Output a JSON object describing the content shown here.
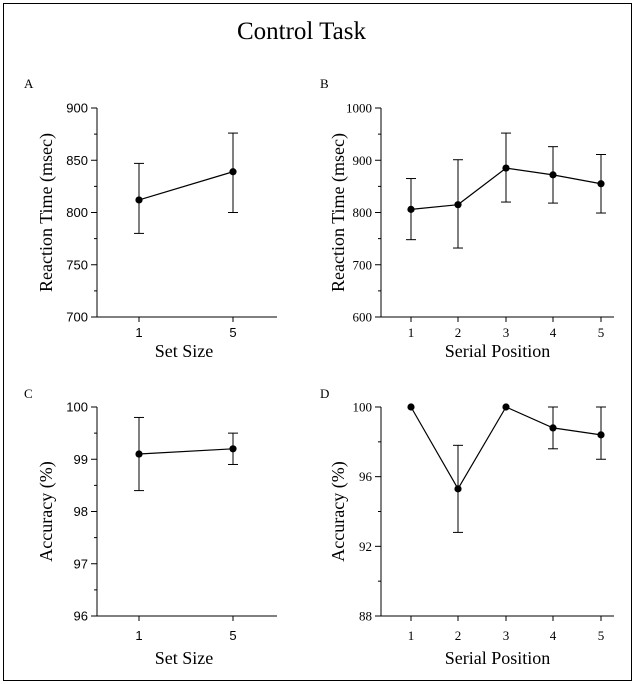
{
  "title": "Control Task",
  "chart_data": [
    {
      "panel": "A",
      "type": "line",
      "categories": [
        "1",
        "5"
      ],
      "values": [
        812,
        839
      ],
      "err_low": [
        780,
        800
      ],
      "err_high": [
        847,
        876
      ],
      "xlabel": "Set Size",
      "ylabel": "Reaction Time (msec)",
      "ylim": [
        700,
        900
      ],
      "yticks": [
        "700",
        "750",
        "800",
        "850",
        "900"
      ],
      "grid": false
    },
    {
      "panel": "B",
      "type": "line",
      "categories": [
        "1",
        "2",
        "3",
        "4",
        "5"
      ],
      "values": [
        806,
        815,
        885,
        872,
        855
      ],
      "err_low": [
        748,
        732,
        820,
        818,
        799
      ],
      "err_high": [
        865,
        901,
        952,
        926,
        911
      ],
      "xlabel": "Serial Position",
      "ylabel": "Reaction Time (msec)",
      "ylim": [
        600,
        1000
      ],
      "yticks": [
        "600",
        "700",
        "800",
        "900",
        "1000"
      ],
      "grid": false
    },
    {
      "panel": "C",
      "type": "line",
      "categories": [
        "1",
        "5"
      ],
      "values": [
        99.1,
        99.2
      ],
      "err_low": [
        98.4,
        98.9
      ],
      "err_high": [
        99.8,
        99.5
      ],
      "xlabel": "Set Size",
      "ylabel": "Accuracy (%)",
      "ylim": [
        96,
        100
      ],
      "yticks": [
        "96",
        "97",
        "98",
        "99",
        "100"
      ],
      "grid": false
    },
    {
      "panel": "D",
      "type": "line",
      "categories": [
        "1",
        "2",
        "3",
        "4",
        "5"
      ],
      "values": [
        100,
        95.3,
        100,
        98.8,
        98.4
      ],
      "err_low": [
        100,
        92.8,
        100,
        97.6,
        97.0
      ],
      "err_high": [
        100,
        97.8,
        100,
        100,
        100
      ],
      "xlabel": "Serial Position",
      "ylabel": "Accuracy (%)",
      "ylim": [
        88,
        100
      ],
      "yticks": [
        "88",
        "92",
        "96",
        "100"
      ],
      "grid": false
    }
  ]
}
